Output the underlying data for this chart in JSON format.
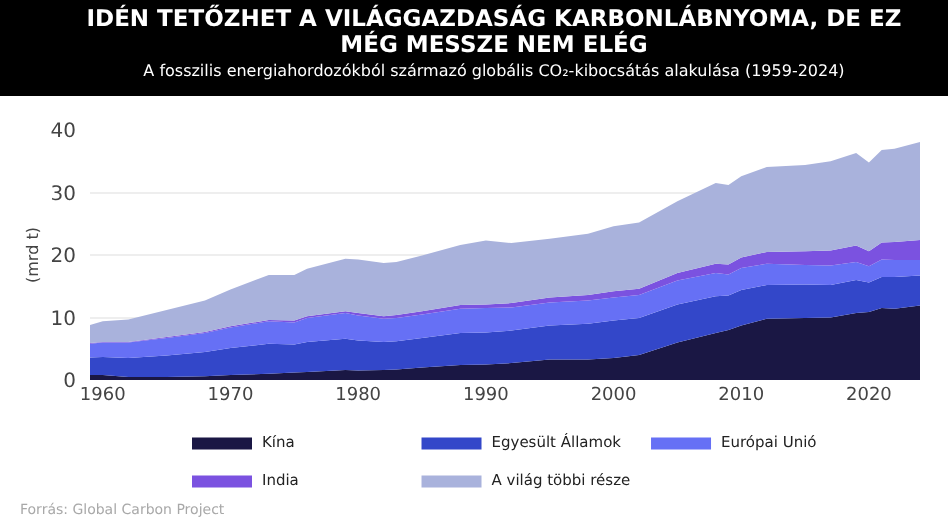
{
  "chart_data": {
    "type": "area",
    "stacked": true,
    "title": "IDÉN TETŐZHET A VILÁGGAZDASÁG KARBONLÁBNYOMA, DE EZ MÉG MESSZE NEM ELÉG",
    "subtitle": "A  fosszilis energiahordozókból származó globális CO₂-kibocsátás alakulása (1959-2024)",
    "ylabel": "(mrd t)",
    "annotations": [
      "Forrás: Global Carbon Project"
    ],
    "x": [
      1959,
      1960,
      1962,
      1965,
      1968,
      1970,
      1973,
      1975,
      1976,
      1979,
      1980,
      1982,
      1983,
      1985,
      1988,
      1990,
      1992,
      1995,
      1998,
      2000,
      2002,
      2005,
      2008,
      2009,
      2010,
      2012,
      2015,
      2017,
      2019,
      2020,
      2021,
      2022,
      2024
    ],
    "series": [
      {
        "name": "Kína",
        "color": "#1a1744",
        "values": [
          0.8,
          0.8,
          0.5,
          0.5,
          0.6,
          0.8,
          1.0,
          1.2,
          1.3,
          1.6,
          1.5,
          1.6,
          1.7,
          2.0,
          2.4,
          2.5,
          2.7,
          3.3,
          3.3,
          3.5,
          4.0,
          6.0,
          7.5,
          8.0,
          8.7,
          9.8,
          9.9,
          10.0,
          10.7,
          10.9,
          11.5,
          11.4,
          11.9
        ]
      },
      {
        "name": "Egyesült Államok",
        "color": "#3347c9",
        "values": [
          2.8,
          2.9,
          3.0,
          3.4,
          3.9,
          4.3,
          4.8,
          4.5,
          4.8,
          5.0,
          4.8,
          4.5,
          4.5,
          4.7,
          5.1,
          5.1,
          5.2,
          5.4,
          5.7,
          6.0,
          5.9,
          6.1,
          5.9,
          5.5,
          5.7,
          5.4,
          5.4,
          5.2,
          5.3,
          4.7,
          5.0,
          5.1,
          4.8
        ]
      },
      {
        "name": "Európai Unió",
        "color": "#6670f5",
        "values": [
          2.2,
          2.3,
          2.5,
          2.8,
          3.0,
          3.3,
          3.6,
          3.5,
          3.8,
          4.1,
          4.0,
          3.7,
          3.7,
          3.8,
          3.9,
          3.9,
          3.7,
          3.7,
          3.7,
          3.7,
          3.7,
          3.8,
          3.7,
          3.4,
          3.5,
          3.4,
          3.1,
          3.1,
          2.9,
          2.6,
          2.8,
          2.7,
          2.5
        ]
      },
      {
        "name": "India",
        "color": "#7b52e0",
        "values": [
          0.1,
          0.1,
          0.1,
          0.2,
          0.2,
          0.2,
          0.2,
          0.3,
          0.3,
          0.3,
          0.4,
          0.4,
          0.5,
          0.5,
          0.6,
          0.6,
          0.7,
          0.8,
          0.9,
          1.0,
          1.0,
          1.2,
          1.5,
          1.6,
          1.7,
          1.9,
          2.2,
          2.4,
          2.6,
          2.4,
          2.7,
          2.9,
          3.2
        ]
      },
      {
        "name": "A világ többi része",
        "color": "#a9b2dc",
        "values": [
          2.9,
          3.3,
          3.6,
          4.3,
          5.0,
          5.9,
          7.2,
          7.3,
          7.6,
          8.4,
          8.6,
          8.5,
          8.5,
          8.9,
          9.6,
          10.2,
          9.6,
          9.4,
          9.8,
          10.4,
          10.6,
          11.5,
          12.9,
          12.7,
          13.0,
          13.6,
          13.8,
          14.3,
          14.8,
          14.2,
          14.8,
          14.9,
          15.7
        ]
      }
    ],
    "xlim": [
      1959,
      2024
    ],
    "xticks": [
      1960,
      1970,
      1980,
      1990,
      2000,
      2010,
      2020
    ],
    "ylim": [
      0,
      40
    ],
    "yticks": [
      0,
      10,
      20,
      30,
      40
    ],
    "grid": "y",
    "legend": "bottom"
  }
}
